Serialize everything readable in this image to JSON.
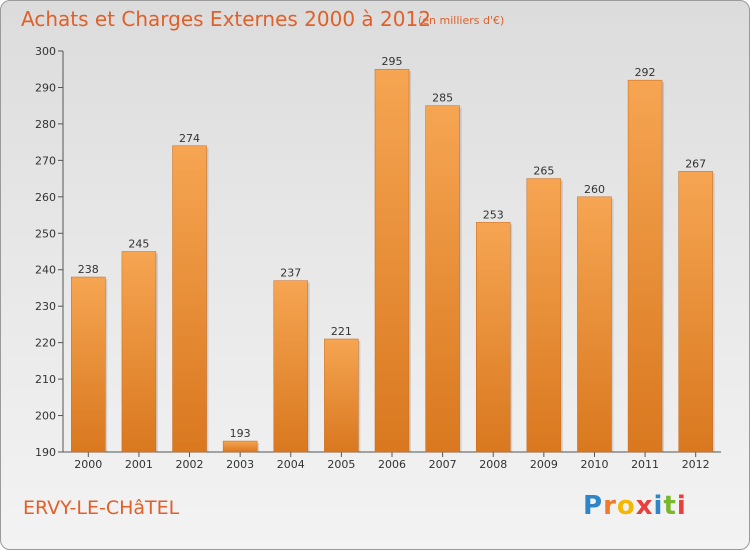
{
  "chart_data": {
    "type": "bar",
    "title": "Achats et Charges Externes 2000 à 2012",
    "subtitle": "(en milliers d'€)",
    "categories": [
      "2000",
      "2001",
      "2002",
      "2003",
      "2004",
      "2005",
      "2006",
      "2007",
      "2008",
      "2009",
      "2010",
      "2011",
      "2012"
    ],
    "values": [
      238,
      245,
      274,
      193,
      237,
      221,
      295,
      285,
      253,
      265,
      260,
      292,
      267
    ],
    "ylim": [
      190,
      300
    ],
    "yticks": [
      190,
      200,
      210,
      220,
      230,
      240,
      250,
      260,
      270,
      280,
      290,
      300
    ],
    "grid": false,
    "bar_color": "#f0923e"
  },
  "footer": {
    "place": "ERVY-LE-CHâTEL",
    "brand_letters": [
      "P",
      "r",
      "o",
      "x",
      "i",
      "t",
      "i"
    ],
    "brand_colors": [
      "#2e86c8",
      "#f07b2a",
      "#f5b800",
      "#e8403a",
      "#2e86c8",
      "#7ab72d",
      "#e8403a"
    ]
  }
}
